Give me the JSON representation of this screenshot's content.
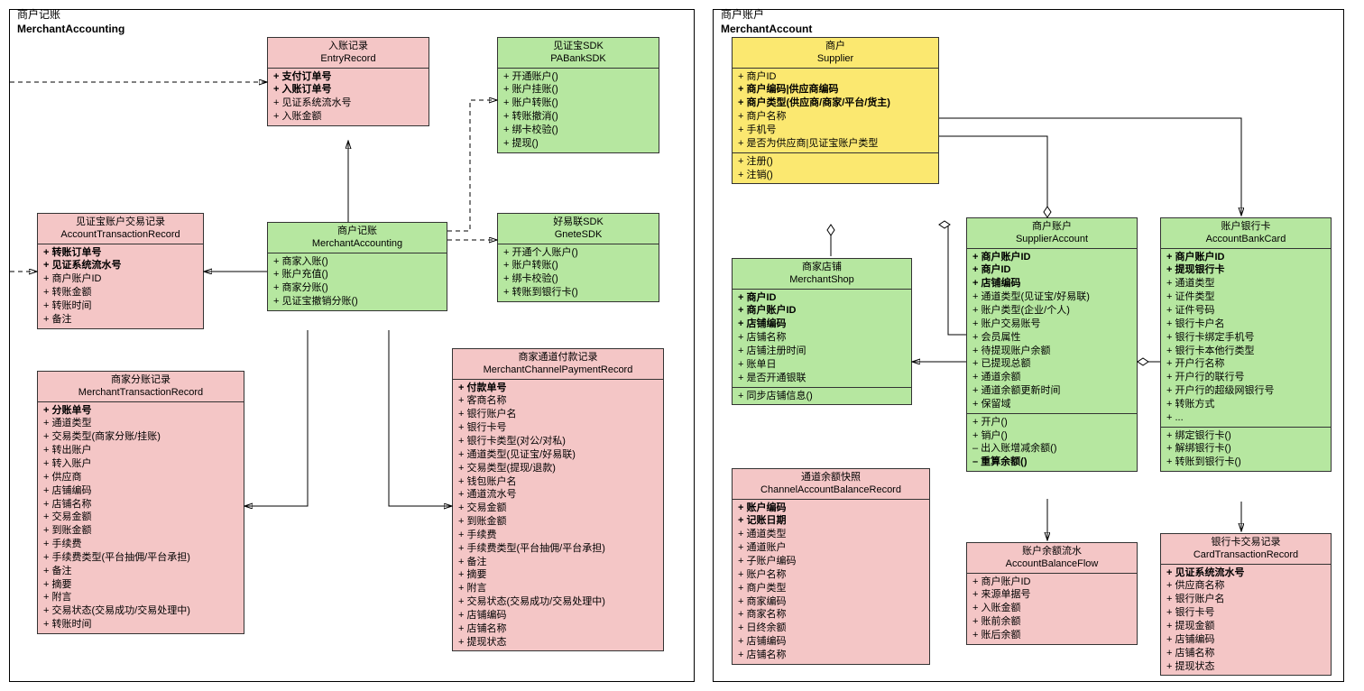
{
  "colors": {
    "pink": "#f4c6c6",
    "green": "#b6e7a0",
    "yellow": "#fbe870",
    "border": "#333333",
    "line": "#000000"
  },
  "packages": {
    "left": {
      "cn": "商户记账",
      "en": "MerchantAccounting"
    },
    "right": {
      "cn": "商户账户",
      "en": "MerchantAccount"
    }
  },
  "classes": {
    "entryRecord": {
      "cn": "入账记录",
      "en": "EntryRecord",
      "color": "pink",
      "attrs": [
        {
          "t": "+ 支付订单号",
          "b": true
        },
        {
          "t": "+ 入账订单号",
          "b": true
        },
        {
          "t": "+ 见证系统流水号"
        },
        {
          "t": "+ 入账金额"
        }
      ]
    },
    "paBankSDK": {
      "cn": "见证宝SDK",
      "en": "PABankSDK",
      "color": "green",
      "ops": [
        {
          "t": "+ 开通账户()"
        },
        {
          "t": "+ 账户挂账()"
        },
        {
          "t": "+ 账户转账()"
        },
        {
          "t": "+ 转账撤消()"
        },
        {
          "t": "+ 绑卡校验()"
        },
        {
          "t": "+ 提现()"
        }
      ]
    },
    "accountTransactionRecord": {
      "cn": "见证宝账户交易记录",
      "en": "AccountTransactionRecord",
      "color": "pink",
      "attrs": [
        {
          "t": "+ 转账订单号",
          "b": true
        },
        {
          "t": "+ 见证系统流水号",
          "b": true
        },
        {
          "t": "+ 商户账户ID"
        },
        {
          "t": "+ 转账金额"
        },
        {
          "t": "+ 转账时间"
        },
        {
          "t": "+ 备注"
        }
      ]
    },
    "merchantAccounting": {
      "cn": "商户记账",
      "en": "MerchantAccounting",
      "color": "green",
      "ops": [
        {
          "t": "+ 商家入账()"
        },
        {
          "t": "+ 账户充值()"
        },
        {
          "t": "+ 商家分账()"
        },
        {
          "t": "+ 见证宝撤销分账()"
        }
      ]
    },
    "gneteSDK": {
      "cn": "好易联SDK",
      "en": "GneteSDK",
      "color": "green",
      "ops": [
        {
          "t": "+ 开通个人账户()"
        },
        {
          "t": "+ 账户转账()"
        },
        {
          "t": "+ 绑卡校验()"
        },
        {
          "t": "+ 转账到银行卡()"
        }
      ]
    },
    "merchantTransactionRecord": {
      "cn": "商家分账记录",
      "en": "MerchantTransactionRecord",
      "color": "pink",
      "attrs": [
        {
          "t": "+ 分账单号",
          "b": true
        },
        {
          "t": "+ 通道类型"
        },
        {
          "t": "+ 交易类型(商家分账/挂账)"
        },
        {
          "t": "+ 转出账户"
        },
        {
          "t": "+ 转入账户"
        },
        {
          "t": "+ 供应商"
        },
        {
          "t": "+ 店铺编码"
        },
        {
          "t": "+ 店铺名称"
        },
        {
          "t": "+ 交易金额"
        },
        {
          "t": "+ 到账金额"
        },
        {
          "t": "+ 手续费"
        },
        {
          "t": "+ 手续费类型(平台抽佣/平台承担)"
        },
        {
          "t": "+ 备注"
        },
        {
          "t": "+ 摘要"
        },
        {
          "t": "+ 附言"
        },
        {
          "t": "+ 交易状态(交易成功/交易处理中)"
        },
        {
          "t": "+ 转账时间"
        }
      ]
    },
    "merchantChannelPaymentRecord": {
      "cn": "商家通道付款记录",
      "en": "MerchantChannelPaymentRecord",
      "color": "pink",
      "attrs": [
        {
          "t": "+ 付款单号",
          "b": true
        },
        {
          "t": "+ 客商名称"
        },
        {
          "t": "+ 银行账户名"
        },
        {
          "t": "+ 银行卡号"
        },
        {
          "t": "+ 银行卡类型(对公/对私)"
        },
        {
          "t": "+ 通道类型(见证宝/好易联)"
        },
        {
          "t": "+ 交易类型(提现/退款)"
        },
        {
          "t": "+ 钱包账户名"
        },
        {
          "t": "+ 通道流水号"
        },
        {
          "t": "+ 交易金额"
        },
        {
          "t": "+ 到账金额"
        },
        {
          "t": "+ 手续费"
        },
        {
          "t": "+ 手续费类型(平台抽佣/平台承担)"
        },
        {
          "t": "+ 备注"
        },
        {
          "t": "+ 摘要"
        },
        {
          "t": "+ 附言"
        },
        {
          "t": "+ 交易状态(交易成功/交易处理中)"
        },
        {
          "t": "+ 店铺编码"
        },
        {
          "t": "+ 店铺名称"
        },
        {
          "t": "+ 提现状态"
        }
      ]
    },
    "supplier": {
      "cn": "商户",
      "en": "Supplier",
      "color": "yellow",
      "attrs": [
        {
          "t": "+ 商户ID"
        },
        {
          "t": "+ 商户编码|供应商编码",
          "b": true
        },
        {
          "t": "+ 商户类型(供应商/商家/平台/货主)",
          "b": true
        },
        {
          "t": "+ 商户名称"
        },
        {
          "t": "+ 手机号"
        },
        {
          "t": "+ 是否为供应商|见证宝账户类型"
        }
      ],
      "ops": [
        {
          "t": "+ 注册()"
        },
        {
          "t": "+ 注销()"
        }
      ]
    },
    "merchantShop": {
      "cn": "商家店铺",
      "en": "MerchantShop",
      "color": "green",
      "attrs": [
        {
          "t": "+ 商户ID",
          "b": true
        },
        {
          "t": "+ 商户账户ID",
          "b": true
        },
        {
          "t": "+ 店铺编码",
          "b": true
        },
        {
          "t": "+ 店铺名称"
        },
        {
          "t": "+ 店铺注册时间"
        },
        {
          "t": "+ 账单日"
        },
        {
          "t": "+ 是否开通银联"
        }
      ],
      "ops": [
        {
          "t": "+ 同步店铺信息()"
        }
      ]
    },
    "supplierAccount": {
      "cn": "商户账户",
      "en": "SupplierAccount",
      "color": "green",
      "attrs": [
        {
          "t": "+ 商户账户ID",
          "b": true
        },
        {
          "t": "+ 商户ID",
          "b": true
        },
        {
          "t": "+ 店铺编码",
          "b": true
        },
        {
          "t": "+ 通道类型(见证宝/好易联)"
        },
        {
          "t": "+ 账户类型(企业/个人)"
        },
        {
          "t": "+ 账户交易账号"
        },
        {
          "t": "+ 会员属性"
        },
        {
          "t": "+ 待提现账户余额"
        },
        {
          "t": "+ 已提现总额"
        },
        {
          "t": "+ 通道余额"
        },
        {
          "t": "+ 通道余额更新时间"
        },
        {
          "t": "+ 保留域"
        }
      ],
      "ops": [
        {
          "t": "+ 开户()"
        },
        {
          "t": "+ 销户()"
        },
        {
          "t": "– 出入账增减余额()"
        },
        {
          "t": "– 重算余额()",
          "b": true
        }
      ]
    },
    "accountBankCard": {
      "cn": "账户银行卡",
      "en": "AccountBankCard",
      "color": "green",
      "attrs": [
        {
          "t": "+ 商户账户ID",
          "b": true
        },
        {
          "t": "+ 提现银行卡",
          "b": true
        },
        {
          "t": "+ 通道类型"
        },
        {
          "t": "+ 证件类型"
        },
        {
          "t": "+ 证件号码"
        },
        {
          "t": "+ 银行卡户名"
        },
        {
          "t": "+ 银行卡绑定手机号"
        },
        {
          "t": "+ 银行卡本他行类型"
        },
        {
          "t": "+ 开户行名称"
        },
        {
          "t": "+ 开户行的联行号"
        },
        {
          "t": "+ 开户行的超级网银行号"
        },
        {
          "t": "+ 转账方式"
        },
        {
          "t": "+ ..."
        }
      ],
      "ops": [
        {
          "t": "+ 绑定银行卡()"
        },
        {
          "t": "+ 解绑银行卡()"
        },
        {
          "t": "+ 转账到银行卡()"
        }
      ]
    },
    "channelAccountBalanceRecord": {
      "cn": "通道余额快照",
      "en": "ChannelAccountBalanceRecord",
      "color": "pink",
      "attrs": [
        {
          "t": "+ 账户编码",
          "b": true
        },
        {
          "t": "+ 记账日期",
          "b": true
        },
        {
          "t": "+ 通道类型"
        },
        {
          "t": "+ 通道账户"
        },
        {
          "t": "+ 子账户编码"
        },
        {
          "t": "+ 账户名称"
        },
        {
          "t": "+ 商户类型"
        },
        {
          "t": "+ 商家编码"
        },
        {
          "t": "+ 商家名称"
        },
        {
          "t": "+ 日终余额"
        },
        {
          "t": "+ 店铺编码"
        },
        {
          "t": "+ 店铺名称"
        }
      ]
    },
    "accountBalanceFlow": {
      "cn": "账户余额流水",
      "en": "AccountBalanceFlow",
      "color": "pink",
      "attrs": [
        {
          "t": "+ 商户账户ID"
        },
        {
          "t": "+ 来源单据号"
        },
        {
          "t": "+ 入账金额"
        },
        {
          "t": "+ 账前余额"
        },
        {
          "t": "+ 账后余额"
        }
      ]
    },
    "cardTransactionRecord": {
      "cn": "银行卡交易记录",
      "en": "CardTransactionRecord",
      "color": "pink",
      "attrs": [
        {
          "t": "+ 见证系统流水号",
          "b": true
        },
        {
          "t": "+ 供应商名称"
        },
        {
          "t": "+ 银行账户名"
        },
        {
          "t": "+ 银行卡号"
        },
        {
          "t": "+ 提现金额"
        },
        {
          "t": "+ 店铺编码"
        },
        {
          "t": "+ 店铺名称"
        },
        {
          "t": "+ 提现状态"
        }
      ]
    }
  }
}
